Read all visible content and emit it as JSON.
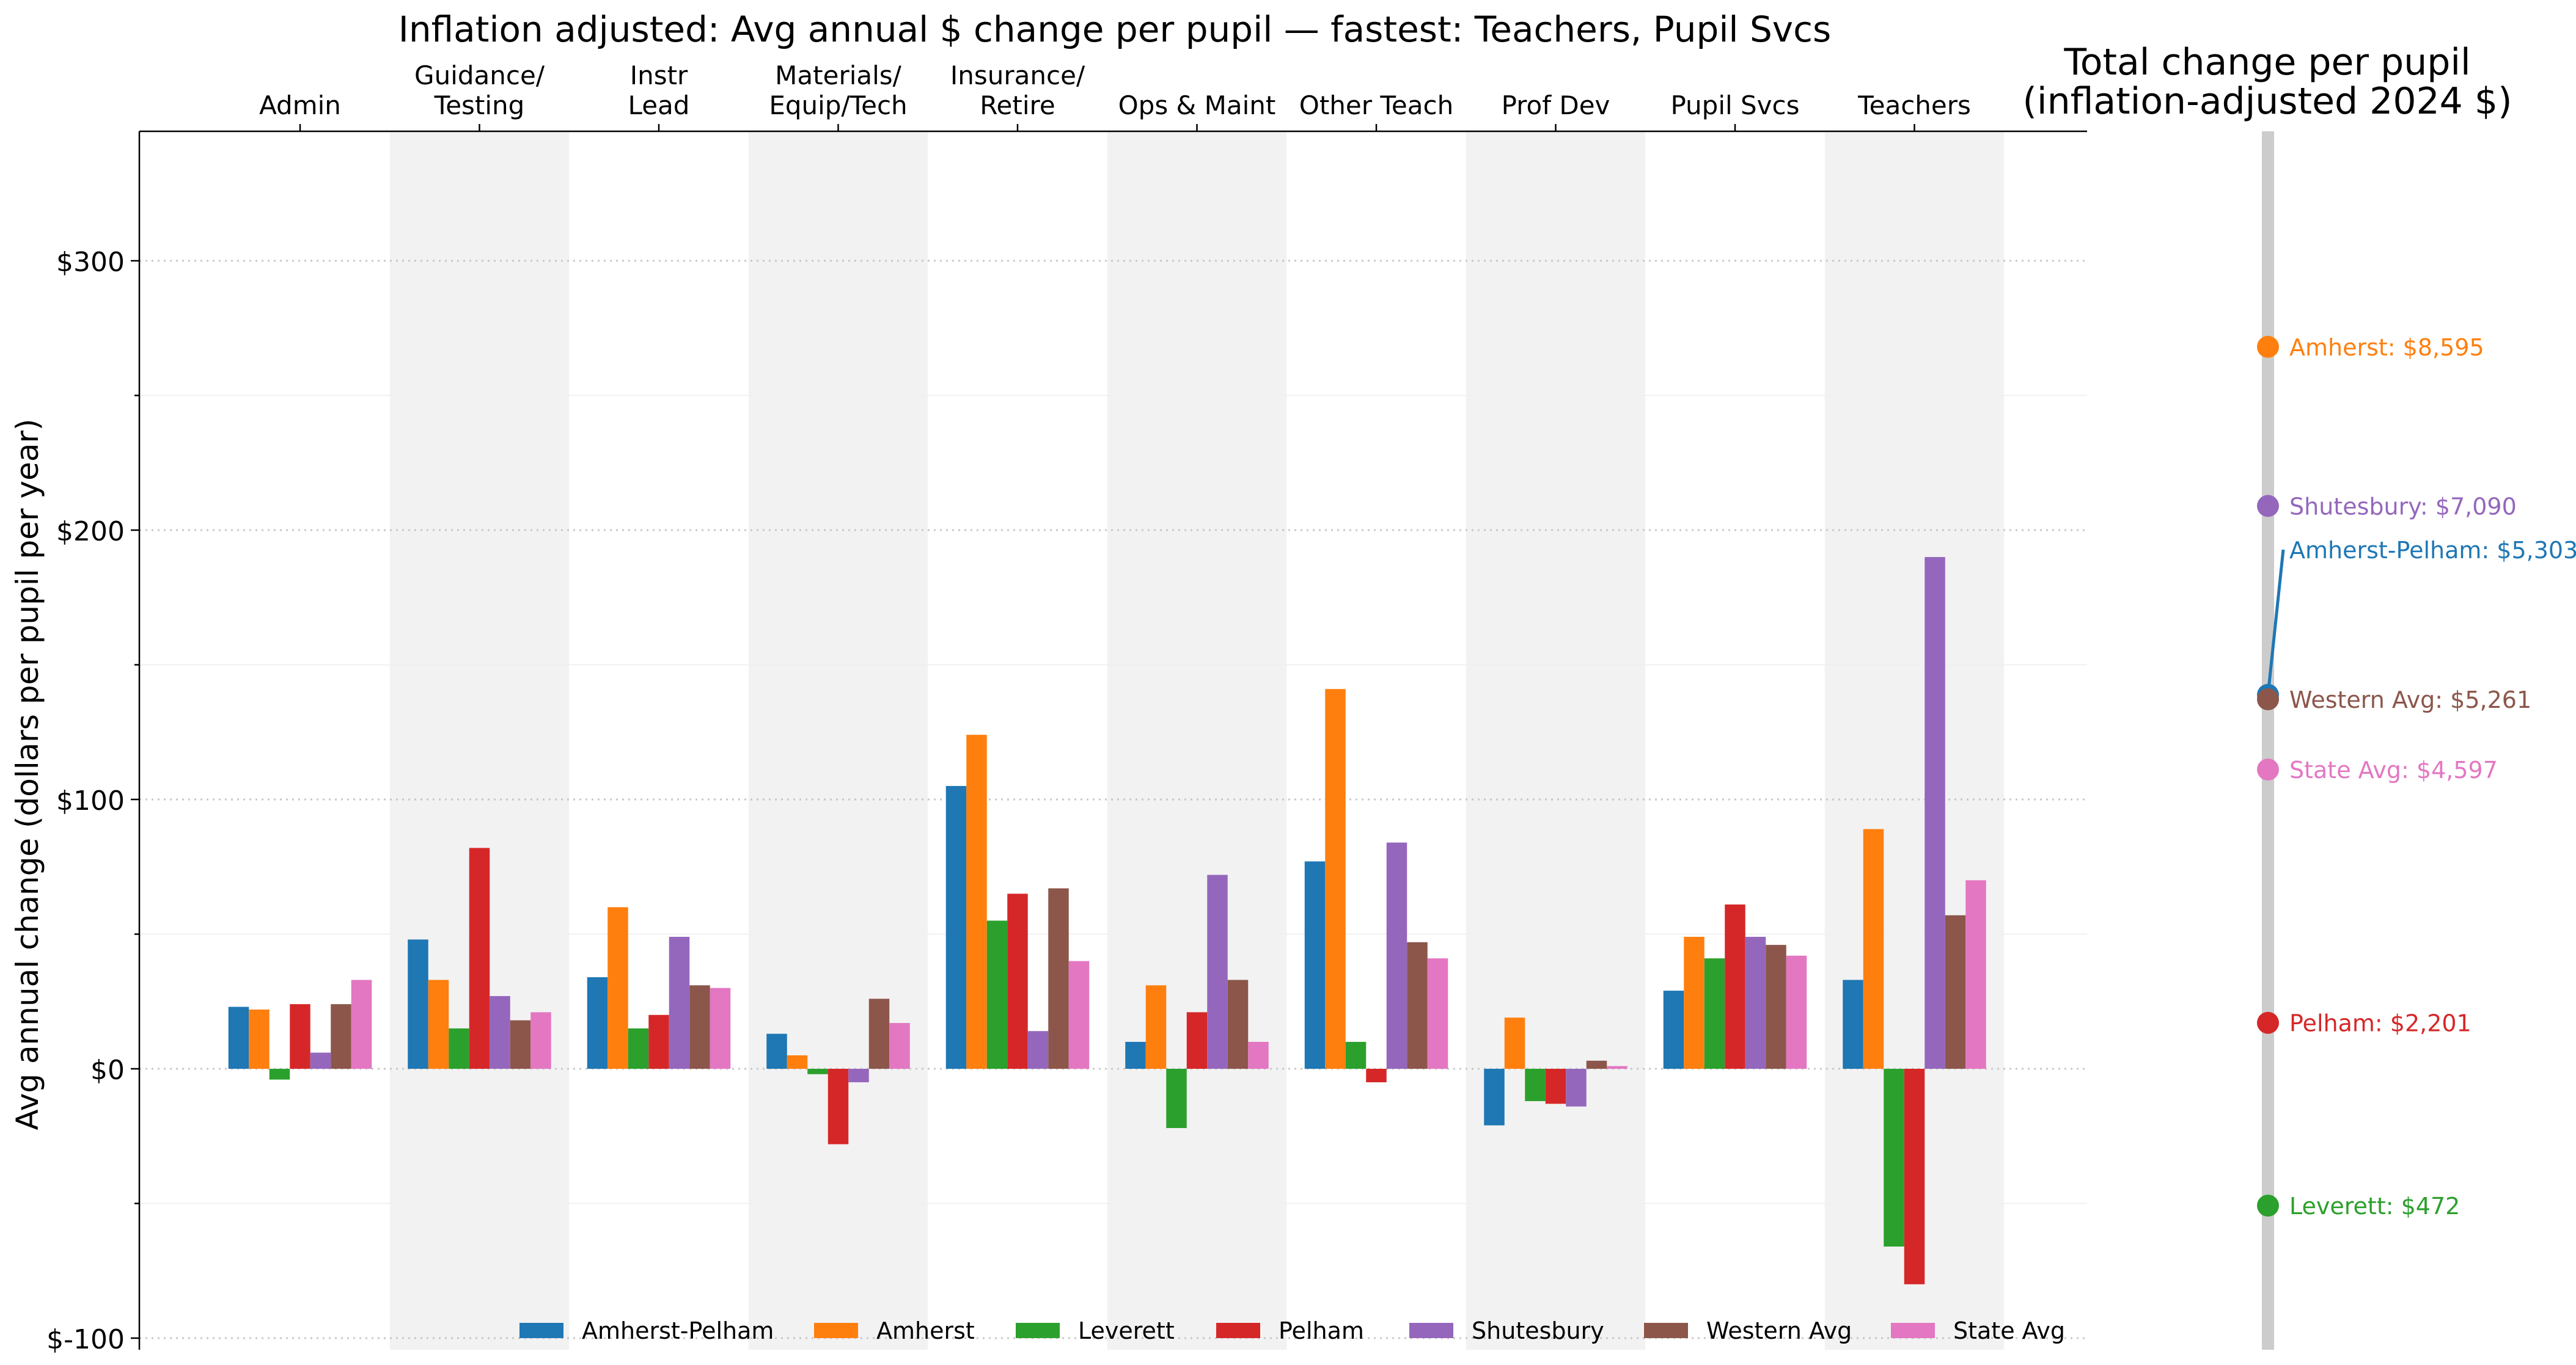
{
  "chart_data": {
    "type": "bar",
    "title": "Inflation adjusted: Avg annual $ change per pupil — fastest: Teachers, Pupil Svcs",
    "ylabel": "Avg annual change (dollars per pupil per year)",
    "ylim": [
      -105,
      347
    ],
    "yticks": [
      -100,
      0,
      100,
      200,
      300
    ],
    "ytick_labels": [
      "$-100",
      "$0",
      "$100",
      "$200",
      "$300"
    ],
    "grid": "horizontal dotted",
    "legend_position": "bottom",
    "categories": [
      [
        "Admin"
      ],
      [
        "Guidance/",
        "Testing"
      ],
      [
        "Instr",
        "Lead"
      ],
      [
        "Materials/",
        "Equip/Tech"
      ],
      [
        "Insurance/",
        "Retire"
      ],
      [
        "Ops & Maint"
      ],
      [
        "Other Teach"
      ],
      [
        "Prof Dev"
      ],
      [
        "Pupil Svcs"
      ],
      [
        "Teachers"
      ]
    ],
    "series": [
      {
        "name": "Amherst-Pelham",
        "color": "#1f77b4",
        "values": [
          23,
          48,
          34,
          13,
          105,
          10,
          77,
          -21,
          29,
          33
        ]
      },
      {
        "name": "Amherst",
        "color": "#ff7f0e",
        "values": [
          22,
          33,
          60,
          5,
          124,
          31,
          141,
          19,
          49,
          89
        ]
      },
      {
        "name": "Leverett",
        "color": "#2ca02c",
        "values": [
          -4,
          15,
          15,
          -2,
          55,
          -22,
          10,
          -12,
          41,
          -66
        ]
      },
      {
        "name": "Pelham",
        "color": "#d62728",
        "values": [
          24,
          82,
          20,
          -28,
          65,
          21,
          -5,
          -13,
          61,
          -80
        ]
      },
      {
        "name": "Shutesbury",
        "color": "#9467bd",
        "values": [
          6,
          27,
          49,
          -5,
          14,
          72,
          84,
          -14,
          49,
          190
        ]
      },
      {
        "name": "Western Avg",
        "color": "#8c564b",
        "values": [
          24,
          18,
          31,
          26,
          67,
          33,
          47,
          3,
          46,
          57
        ]
      },
      {
        "name": "State Avg",
        "color": "#e377c2",
        "values": [
          33,
          21,
          30,
          17,
          40,
          10,
          41,
          1,
          42,
          70
        ]
      }
    ],
    "totals_panel": {
      "title": [
        "Total change per pupil",
        "(inflation-adjusted 2024 $)"
      ],
      "items": [
        {
          "label": "Amherst: $8,595",
          "value": 8595,
          "color": "#ff7f0e"
        },
        {
          "label": "Shutesbury: $7,090",
          "value": 7090,
          "color": "#9467bd"
        },
        {
          "label": "Amherst-Pelham: $5,303",
          "value": 5303,
          "color": "#1f77b4"
        },
        {
          "label": "Western Avg: $5,261",
          "value": 5261,
          "color": "#8c564b"
        },
        {
          "label": "State Avg: $4,597",
          "value": 4597,
          "color": "#e377c2"
        },
        {
          "label": "Pelham: $2,201",
          "value": 2201,
          "color": "#d62728"
        },
        {
          "label": "Leverett: $472",
          "value": 472,
          "color": "#2ca02c"
        }
      ]
    }
  }
}
